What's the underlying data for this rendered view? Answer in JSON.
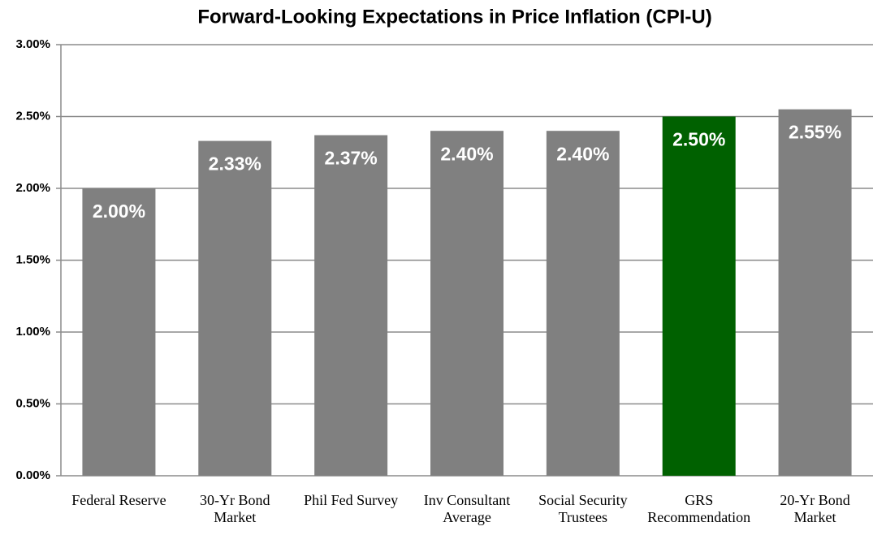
{
  "chart_data": {
    "type": "bar",
    "title": "Forward-Looking Expectations in Price Inflation (CPI-U)",
    "categories": [
      "Federal Reserve",
      "30-Yr Bond Market",
      "Phil Fed Survey",
      "Inv Consultant Average",
      "Social Security Trustees",
      "GRS Recommendation",
      "20-Yr Bond Market"
    ],
    "values": [
      2.0,
      2.33,
      2.37,
      2.4,
      2.4,
      2.5,
      2.55
    ],
    "value_labels": [
      "2.00%",
      "2.33%",
      "2.37%",
      "2.40%",
      "2.40%",
      "2.50%",
      "2.55%"
    ],
    "colors": [
      "#808080",
      "#808080",
      "#808080",
      "#808080",
      "#808080",
      "#006100",
      "#808080"
    ],
    "ylim": [
      0,
      3
    ],
    "yticks": [
      {
        "value": 0,
        "label": "0.00%"
      },
      {
        "value": 0.5,
        "label": "0.50%"
      },
      {
        "value": 1,
        "label": "1.00%"
      },
      {
        "value": 1.5,
        "label": "1.50%"
      },
      {
        "value": 2,
        "label": "2.00%"
      },
      {
        "value": 2.5,
        "label": "2.50%"
      },
      {
        "value": 3,
        "label": "3.00%"
      }
    ],
    "grid": true
  }
}
